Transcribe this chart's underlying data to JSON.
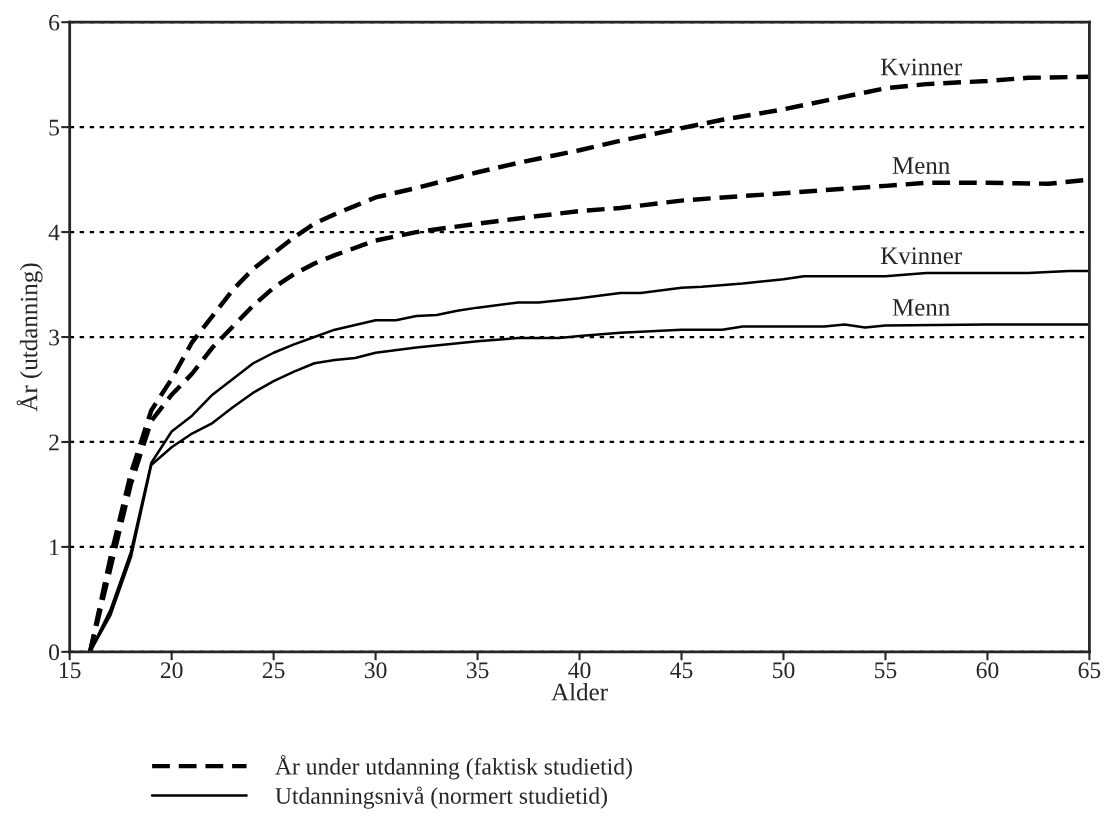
{
  "chart_data": {
    "type": "line",
    "xlabel": "Alder",
    "ylabel": "År (utdanning)",
    "xlim": [
      15,
      65
    ],
    "ylim": [
      0,
      6
    ],
    "xticks": [
      15,
      20,
      25,
      30,
      35,
      40,
      45,
      50,
      55,
      60,
      65
    ],
    "yticks": [
      0,
      1,
      2,
      3,
      4,
      5,
      6
    ],
    "grid": "y",
    "marker": "none",
    "series": [
      {
        "name": "Kvinner",
        "color": "#000000",
        "line_style": "dashed",
        "x": [
          16,
          17,
          18,
          19,
          20,
          21,
          22,
          23,
          24,
          25,
          26,
          27,
          28,
          29,
          30,
          32,
          35,
          37,
          40,
          42,
          45,
          47,
          50,
          52,
          55,
          57,
          60,
          62,
          65
        ],
        "values": [
          0,
          0.9,
          1.7,
          2.3,
          2.6,
          2.95,
          3.2,
          3.45,
          3.65,
          3.8,
          3.95,
          4.08,
          4.17,
          4.25,
          4.33,
          4.42,
          4.57,
          4.66,
          4.78,
          4.87,
          4.99,
          5.07,
          5.17,
          5.25,
          5.37,
          5.41,
          5.44,
          5.47,
          5.48
        ]
      },
      {
        "name": "Menn",
        "color": "#000000",
        "line_style": "dashed",
        "x": [
          16,
          17,
          18,
          19,
          20,
          21,
          22,
          23,
          24,
          25,
          26,
          27,
          28,
          30,
          32,
          35,
          37,
          40,
          42,
          45,
          47,
          50,
          52,
          55,
          57,
          60,
          63,
          65
        ],
        "values": [
          0,
          0.8,
          1.6,
          2.2,
          2.45,
          2.65,
          2.9,
          3.1,
          3.3,
          3.47,
          3.6,
          3.7,
          3.78,
          3.92,
          4.0,
          4.08,
          4.13,
          4.2,
          4.23,
          4.3,
          4.33,
          4.37,
          4.4,
          4.44,
          4.47,
          4.47,
          4.46,
          4.5
        ]
      },
      {
        "name": "Kvinner",
        "color": "#000000",
        "line_style": "solid",
        "x": [
          16,
          17,
          18,
          19,
          20,
          21,
          22,
          23,
          24,
          25,
          26,
          27,
          28,
          30,
          31,
          32,
          33,
          34,
          35,
          37,
          38,
          40,
          42,
          43,
          45,
          46,
          48,
          50,
          51,
          55,
          57,
          62,
          64,
          65
        ],
        "values": [
          0,
          0.4,
          0.95,
          1.8,
          2.1,
          2.25,
          2.45,
          2.6,
          2.75,
          2.85,
          2.93,
          3.0,
          3.07,
          3.16,
          3.16,
          3.2,
          3.21,
          3.25,
          3.28,
          3.33,
          3.33,
          3.37,
          3.42,
          3.42,
          3.47,
          3.48,
          3.51,
          3.55,
          3.58,
          3.58,
          3.61,
          3.61,
          3.63,
          3.63
        ]
      },
      {
        "name": "Menn",
        "color": "#000000",
        "line_style": "solid",
        "x": [
          16,
          17,
          18,
          19,
          20,
          21,
          22,
          23,
          24,
          25,
          26,
          27,
          28,
          29,
          30,
          32,
          35,
          37,
          39,
          40,
          42,
          45,
          47,
          48,
          52,
          53,
          54,
          55,
          60,
          65
        ],
        "values": [
          0,
          0.35,
          0.9,
          1.78,
          1.95,
          2.08,
          2.18,
          2.33,
          2.47,
          2.58,
          2.67,
          2.75,
          2.78,
          2.8,
          2.85,
          2.9,
          2.96,
          2.99,
          2.99,
          3.01,
          3.04,
          3.07,
          3.07,
          3.1,
          3.1,
          3.12,
          3.09,
          3.11,
          3.12,
          3.12
        ]
      }
    ],
    "annotations": [
      "År under utdanning (faktisk studietid)",
      "Utdanningsnivå (normert studietid)"
    ]
  }
}
